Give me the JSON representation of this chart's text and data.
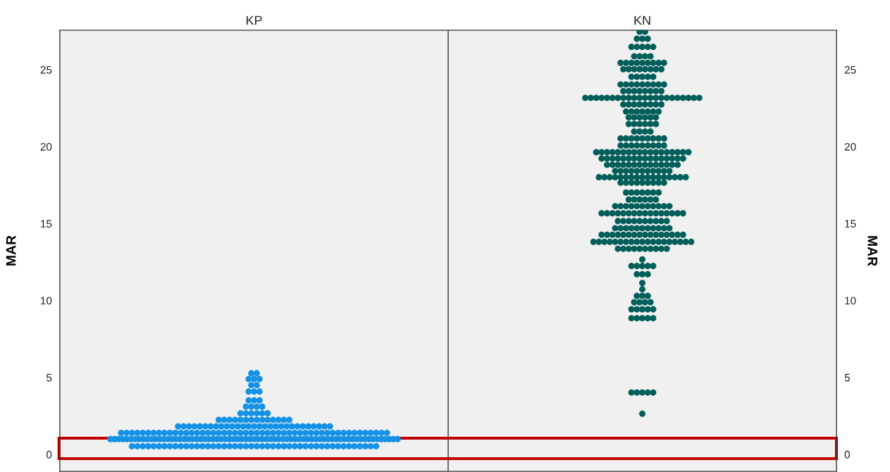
{
  "chart_data": {
    "type": "scatter",
    "categories": [
      "KP",
      "KN"
    ],
    "ylabel": "MAR",
    "y2label": "MAR",
    "ylim": [
      -1.1,
      27.56
    ],
    "yticks": [
      0,
      5,
      10,
      15,
      20,
      25
    ],
    "y2lim": [
      -1.1,
      27.56
    ],
    "y2ticks": [
      0,
      5,
      10,
      15,
      20,
      25
    ],
    "grid": false,
    "marker": "circle",
    "series": [
      {
        "color": "#1592e6",
        "values": [
          5.27,
          5.27,
          4.9,
          4.9,
          4.9,
          4.5,
          4.5,
          4.08,
          4.08,
          4.08,
          3.51,
          3.51,
          3.51,
          3.1,
          3.1,
          3.1,
          3.1,
          2.67,
          2.67,
          2.67,
          2.67,
          2.67,
          2.67,
          2.24,
          2.24,
          2.24,
          2.24,
          2.24,
          2.24,
          2.24,
          2.24,
          2.24,
          2.24,
          2.24,
          2.24,
          2.24,
          2.24,
          1.82,
          1.82,
          1.82,
          1.82,
          1.82,
          1.82,
          1.82,
          1.82,
          1.82,
          1.82,
          1.82,
          1.82,
          1.82,
          1.82,
          1.82,
          1.82,
          1.82,
          1.82,
          1.82,
          1.82,
          1.82,
          1.82,
          1.82,
          1.82,
          1.82,
          1.82,
          1.82,
          1.82,
          1.82,
          1.4,
          1.4,
          1.4,
          1.4,
          1.4,
          1.4,
          1.4,
          1.4,
          1.4,
          1.4,
          1.4,
          1.4,
          1.4,
          1.4,
          1.4,
          1.4,
          1.4,
          1.4,
          1.4,
          1.4,
          1.4,
          1.4,
          1.4,
          1.4,
          1.4,
          1.4,
          1.4,
          1.4,
          1.4,
          1.4,
          1.4,
          1.4,
          1.4,
          1.4,
          1.4,
          1.4,
          1.4,
          1.4,
          1.4,
          1.4,
          1.4,
          1.4,
          1.4,
          1.4,
          1.4,
          1.4,
          1.4,
          1.4,
          1.4,
          1.4,
          0.99,
          0.99,
          0.99,
          0.99,
          0.99,
          0.99,
          0.99,
          0.99,
          0.99,
          0.99,
          0.99,
          0.99,
          0.99,
          0.99,
          0.99,
          0.99,
          0.99,
          0.99,
          0.99,
          0.99,
          0.99,
          0.99,
          0.99,
          0.99,
          0.99,
          0.99,
          0.99,
          0.99,
          0.99,
          0.99,
          0.99,
          0.99,
          0.99,
          0.99,
          0.99,
          0.99,
          0.99,
          0.99,
          0.99,
          0.99,
          0.99,
          0.99,
          0.99,
          0.99,
          0.99,
          0.99,
          0.99,
          0.99,
          0.99,
          0.99,
          0.99,
          0.99,
          0.99,
          0.99,
          0.99,
          0.99,
          0.99,
          0.99,
          0.99,
          0.99,
          0.99,
          0.99,
          0.99,
          0.99,
          0.99,
          0.99,
          0.99,
          0.99,
          0.99,
          0.99,
          0.99,
          0.53,
          0.53,
          0.53,
          0.53,
          0.53,
          0.53,
          0.53,
          0.53,
          0.53,
          0.53,
          0.53,
          0.53,
          0.53,
          0.53,
          0.53,
          0.53,
          0.53,
          0.53,
          0.53,
          0.53,
          0.53,
          0.53,
          0.53,
          0.53,
          0.53,
          0.53,
          0.53,
          0.53,
          0.53,
          0.53,
          0.53,
          0.53,
          0.53,
          0.53,
          0.53,
          0.53,
          0.53,
          0.53,
          0.53,
          0.53,
          0.53,
          0.53,
          0.53,
          0.53,
          0.53,
          0.53
        ],
        "x": [
          "KP",
          "KP",
          "KP",
          "KP",
          "KP",
          "KP",
          "KP",
          "KP",
          "KP",
          "KP",
          "KP",
          "KP",
          "KP",
          "KP",
          "KP",
          "KP",
          "KP",
          "KP",
          "KP",
          "KP",
          "KP",
          "KP",
          "KP",
          "KP",
          "KP",
          "KP",
          "KP",
          "KP",
          "KP",
          "KP",
          "KP",
          "KP",
          "KP",
          "KP",
          "KP",
          "KP",
          "KP",
          "KP",
          "KP",
          "KP",
          "KP",
          "KP",
          "KP",
          "KP",
          "KP",
          "KP",
          "KP",
          "KP",
          "KP",
          "KP",
          "KP",
          "KP",
          "KP",
          "KP",
          "KP",
          "KP",
          "KP",
          "KP",
          "KP",
          "KP",
          "KP",
          "KP",
          "KP",
          "KP",
          "KP",
          "KP",
          "KP",
          "KP",
          "KP",
          "KP",
          "KP",
          "KP",
          "KP",
          "KP",
          "KP",
          "KP",
          "KP",
          "KP",
          "KP",
          "KP",
          "KP",
          "KP",
          "KP",
          "KP",
          "KP",
          "KP",
          "KP",
          "KP",
          "KP",
          "KP",
          "KP",
          "KP",
          "KP",
          "KP",
          "KP",
          "KP",
          "KP",
          "KP",
          "KP",
          "KP",
          "KP",
          "KP",
          "KP",
          "KP",
          "KP",
          "KP",
          "KP",
          "KP",
          "KP",
          "KP",
          "KP",
          "KP",
          "KP",
          "KP",
          "KP",
          "KP",
          "KP",
          "KP",
          "KP",
          "KP",
          "KP",
          "KP",
          "KP",
          "KP",
          "KP",
          "KP",
          "KP",
          "KP",
          "KP",
          "KP",
          "KP",
          "KP",
          "KP",
          "KP",
          "KP",
          "KP",
          "KP",
          "KP",
          "KP",
          "KP",
          "KP",
          "KP",
          "KP",
          "KP",
          "KP",
          "KP",
          "KP",
          "KP",
          "KP",
          "KP",
          "KP",
          "KP",
          "KP",
          "KP",
          "KP",
          "KP",
          "KP",
          "KP",
          "KP",
          "KP",
          "KP",
          "KP",
          "KP",
          "KP",
          "KP",
          "KP",
          "KP",
          "KP",
          "KP",
          "KP",
          "KP",
          "KP",
          "KP",
          "KP",
          "KP",
          "KP",
          "KP",
          "KP",
          "KP",
          "KP",
          "KP",
          "KP",
          "KP",
          "KP",
          "KP",
          "KP",
          "KP",
          "KP",
          "KP",
          "KP",
          "KP",
          "KP",
          "KP",
          "KP",
          "KP",
          "KP",
          "KP",
          "KP",
          "KP",
          "KP",
          "KP",
          "KP",
          "KP",
          "KP",
          "KP",
          "KP",
          "KP",
          "KP",
          "KP",
          "KP",
          "KP",
          "KP",
          "KP",
          "KP",
          "KP",
          "KP",
          "KP",
          "KP",
          "KP",
          "KP",
          "KP",
          "KP",
          "KP",
          "KP",
          "KP",
          "KP",
          "KP",
          "KP",
          "KP",
          "KP",
          "KP",
          "KP",
          "KP"
        ]
      },
      {
        "color": "#005f5a",
        "values": [
          27.47,
          27.47,
          27.01,
          27.01,
          27.01,
          26.48,
          26.48,
          26.48,
          26.48,
          26.48,
          25.87,
          25.87,
          25.87,
          25.87,
          25.44,
          25.44,
          25.44,
          25.44,
          25.44,
          25.44,
          25.44,
          25.44,
          25.44,
          25.03,
          25.03,
          25.03,
          25.03,
          25.03,
          25.03,
          25.03,
          25.03,
          24.54,
          24.54,
          24.54,
          24.54,
          24.54,
          24.04,
          24.04,
          24.04,
          24.04,
          24.04,
          24.04,
          24.04,
          24.04,
          24.04,
          23.61,
          23.61,
          23.61,
          23.61,
          23.61,
          23.61,
          23.61,
          23.61,
          23.17,
          23.17,
          23.17,
          23.17,
          23.17,
          23.17,
          23.17,
          23.17,
          23.17,
          23.17,
          23.17,
          23.17,
          23.17,
          23.17,
          23.17,
          23.17,
          23.17,
          23.17,
          23.17,
          23.17,
          23.17,
          23.17,
          22.74,
          22.74,
          22.74,
          22.74,
          22.74,
          22.74,
          22.74,
          22.74,
          22.28,
          22.28,
          22.28,
          22.28,
          22.28,
          22.28,
          22.28,
          21.9,
          21.9,
          21.9,
          21.9,
          21.9,
          21.9,
          21.47,
          21.47,
          21.47,
          21.47,
          21.47,
          21.47,
          20.98,
          20.98,
          20.98,
          20.98,
          20.53,
          20.53,
          20.53,
          20.53,
          20.53,
          20.53,
          20.53,
          20.53,
          20.53,
          20.07,
          20.07,
          20.07,
          20.07,
          20.07,
          20.07,
          20.07,
          20.07,
          20.07,
          19.64,
          19.64,
          19.64,
          19.64,
          19.64,
          19.64,
          19.64,
          19.64,
          19.64,
          19.64,
          19.64,
          19.64,
          19.64,
          19.64,
          19.64,
          19.64,
          19.64,
          19.64,
          19.23,
          19.23,
          19.23,
          19.23,
          19.23,
          19.23,
          19.23,
          19.23,
          19.23,
          19.23,
          19.23,
          19.23,
          19.23,
          19.23,
          19.23,
          19.23,
          18.82,
          18.82,
          18.82,
          18.82,
          18.82,
          18.82,
          18.82,
          18.82,
          18.82,
          18.82,
          18.82,
          18.82,
          18.82,
          18.82,
          18.42,
          18.42,
          18.42,
          18.42,
          18.42,
          18.42,
          18.42,
          18.42,
          18.42,
          18.42,
          18.42,
          18.01,
          18.01,
          18.01,
          18.01,
          18.01,
          18.01,
          18.01,
          18.01,
          18.01,
          18.01,
          18.01,
          18.01,
          18.01,
          18.01,
          18.01,
          18.01,
          18.01,
          17.66,
          17.66,
          17.66,
          17.66,
          17.66,
          17.66,
          17.66,
          17.66,
          17.66,
          17.02,
          17.02,
          17.02,
          17.02,
          17.02,
          17.02,
          17.02,
          16.56,
          16.56,
          16.56,
          16.56,
          16.56,
          16.56,
          16.13,
          16.13,
          16.13,
          16.13,
          16.13,
          16.13,
          16.13,
          16.13,
          16.13,
          16.13,
          16.13,
          15.67,
          15.67,
          15.67,
          15.67,
          15.67,
          15.67,
          15.67,
          15.67,
          15.67,
          15.67,
          15.67,
          15.67,
          15.67,
          15.67,
          15.67,
          15.67,
          15.16,
          15.16,
          15.16,
          15.16,
          15.16,
          15.16,
          15.16,
          15.16,
          15.16,
          15.16,
          14.7,
          14.7,
          14.7,
          14.7,
          14.7,
          14.7,
          14.7,
          14.7,
          14.7,
          14.7,
          14.7,
          14.27,
          14.27,
          14.27,
          14.27,
          14.27,
          14.27,
          14.27,
          14.27,
          14.27,
          14.27,
          14.27,
          14.27,
          14.27,
          14.27,
          14.27,
          14.27,
          13.81,
          13.81,
          13.81,
          13.81,
          13.81,
          13.81,
          13.81,
          13.81,
          13.81,
          13.81,
          13.81,
          13.81,
          13.81,
          13.81,
          13.81,
          13.81,
          13.81,
          13.81,
          13.81,
          13.36,
          13.36,
          13.36,
          13.36,
          13.36,
          13.36,
          13.36,
          13.36,
          13.36,
          13.36,
          12.67,
          12.24,
          12.24,
          12.24,
          12.24,
          12.24,
          11.71,
          11.71,
          11.71,
          11.14,
          10.73,
          10.3,
          10.3,
          10.3,
          9.89,
          9.89,
          9.89,
          9.89,
          9.43,
          9.43,
          9.43,
          9.43,
          9.43,
          8.85,
          8.85,
          8.85,
          8.85,
          8.85,
          4.02,
          4.02,
          4.02,
          4.02,
          4.02,
          2.64
        ],
        "x": [
          "KN",
          "KN",
          "KN",
          "KN",
          "KN",
          "KN",
          "KN",
          "KN",
          "KN",
          "KN",
          "KN",
          "KN",
          "KN",
          "KN",
          "KN",
          "KN",
          "KN",
          "KN",
          "KN",
          "KN",
          "KN",
          "KN",
          "KN",
          "KN",
          "KN",
          "KN",
          "KN",
          "KN",
          "KN",
          "KN",
          "KN",
          "KN",
          "KN",
          "KN",
          "KN",
          "KN",
          "KN",
          "KN",
          "KN",
          "KN",
          "KN",
          "KN",
          "KN",
          "KN",
          "KN",
          "KN",
          "KN",
          "KN",
          "KN",
          "KN",
          "KN",
          "KN",
          "KN",
          "KN",
          "KN",
          "KN",
          "KN",
          "KN",
          "KN",
          "KN",
          "KN",
          "KN",
          "KN",
          "KN",
          "KN",
          "KN",
          "KN",
          "KN",
          "KN",
          "KN",
          "KN",
          "KN",
          "KN",
          "KN",
          "KN",
          "KN",
          "KN",
          "KN",
          "KN",
          "KN",
          "KN",
          "KN",
          "KN",
          "KN",
          "KN",
          "KN",
          "KN",
          "KN",
          "KN",
          "KN",
          "KN",
          "KN",
          "KN",
          "KN",
          "KN",
          "KN",
          "KN",
          "KN",
          "KN",
          "KN",
          "KN",
          "KN",
          "KN",
          "KN",
          "KN",
          "KN",
          "KN",
          "KN",
          "KN",
          "KN",
          "KN",
          "KN",
          "KN",
          "KN",
          "KN",
          "KN",
          "KN",
          "KN",
          "KN",
          "KN",
          "KN",
          "KN",
          "KN",
          "KN",
          "KN",
          "KN",
          "KN",
          "KN",
          "KN",
          "KN",
          "KN",
          "KN",
          "KN",
          "KN",
          "KN",
          "KN",
          "KN",
          "KN",
          "KN",
          "KN",
          "KN",
          "KN",
          "KN",
          "KN",
          "KN",
          "KN",
          "KN",
          "KN",
          "KN",
          "KN",
          "KN",
          "KN",
          "KN",
          "KN",
          "KN",
          "KN",
          "KN",
          "KN",
          "KN",
          "KN",
          "KN",
          "KN",
          "KN",
          "KN",
          "KN",
          "KN",
          "KN",
          "KN",
          "KN",
          "KN",
          "KN",
          "KN",
          "KN",
          "KN",
          "KN",
          "KN",
          "KN",
          "KN",
          "KN",
          "KN",
          "KN",
          "KN",
          "KN",
          "KN",
          "KN",
          "KN",
          "KN",
          "KN",
          "KN",
          "KN",
          "KN",
          "KN",
          "KN",
          "KN",
          "KN",
          "KN",
          "KN",
          "KN",
          "KN",
          "KN",
          "KN",
          "KN",
          "KN",
          "KN",
          "KN",
          "KN",
          "KN",
          "KN",
          "KN",
          "KN",
          "KN",
          "KN",
          "KN",
          "KN",
          "KN",
          "KN",
          "KN",
          "KN",
          "KN",
          "KN",
          "KN",
          "KN",
          "KN",
          "KN",
          "KN",
          "KN",
          "KN",
          "KN",
          "KN",
          "KN",
          "KN",
          "KN",
          "KN",
          "KN",
          "KN",
          "KN",
          "KN",
          "KN",
          "KN",
          "KN",
          "KN",
          "KN",
          "KN",
          "KN",
          "KN",
          "KN",
          "KN",
          "KN",
          "KN",
          "KN",
          "KN",
          "KN",
          "KN",
          "KN",
          "KN",
          "KN",
          "KN",
          "KN",
          "KN",
          "KN",
          "KN",
          "KN",
          "KN",
          "KN",
          "KN",
          "KN",
          "KN",
          "KN",
          "KN",
          "KN",
          "KN",
          "KN",
          "KN",
          "KN",
          "KN",
          "KN",
          "KN",
          "KN",
          "KN",
          "KN",
          "KN",
          "KN",
          "KN",
          "KN",
          "KN",
          "KN",
          "KN",
          "KN",
          "KN",
          "KN",
          "KN",
          "KN",
          "KN",
          "KN",
          "KN",
          "KN",
          "KN",
          "KN",
          "KN",
          "KN",
          "KN",
          "KN",
          "KN",
          "KN",
          "KN",
          "KN",
          "KN",
          "KN",
          "KN",
          "KN",
          "KN",
          "KN",
          "KN",
          "KN",
          "KN",
          "KN",
          "KN",
          "KN",
          "KN",
          "KN",
          "KN",
          "KN",
          "KN",
          "KN",
          "KN",
          "KN",
          "KN",
          "KN",
          "KN",
          "KN",
          "KN",
          "KN",
          "KN",
          "KN",
          "KN",
          "KN",
          "KN",
          "KN",
          "KN",
          "KN",
          "KN",
          "KN",
          "KN",
          "KN",
          "KN",
          "KN",
          "KN",
          "KN",
          "KN"
        ]
      }
    ]
  }
}
